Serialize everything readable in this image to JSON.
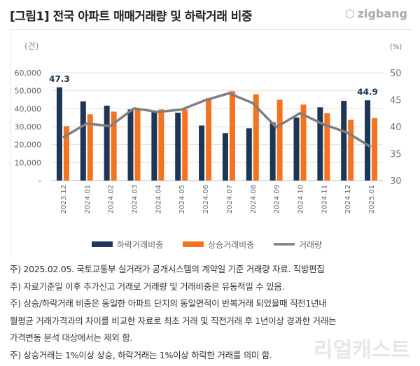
{
  "header": {
    "title": "[그림1] 전국 아파트 매매거래량 및 하락거래 비중",
    "logo": "zigbang"
  },
  "chart_data": {
    "type": "bar",
    "categories": [
      "2023.12",
      "2024.01",
      "2024.02",
      "2024.03",
      "2024.04",
      "2024.05",
      "2024.06",
      "2024.07",
      "2024.08",
      "2024.09",
      "2024.10",
      "2024.11",
      "2024.12",
      "2025.01"
    ],
    "series": [
      {
        "name": "하락거래비중",
        "axis": "right",
        "kind": "bar",
        "color": "#1f3556",
        "values": [
          47.3,
          44.7,
          43.9,
          43.2,
          42.7,
          42.6,
          40.2,
          38.8,
          39.7,
          40.8,
          41.7,
          43.6,
          44.8,
          44.9
        ]
      },
      {
        "name": "상승거래비중",
        "axis": "right",
        "kind": "bar",
        "color": "#f47321",
        "values": [
          40.1,
          42.3,
          42.8,
          43.2,
          43.2,
          43.2,
          45.3,
          46.6,
          46.0,
          45.0,
          44.1,
          42.5,
          41.3,
          41.6
        ]
      },
      {
        "name": "거래량",
        "axis": "left",
        "kind": "line",
        "color": "#7f7f7f",
        "values": [
          24000,
          31700,
          30400,
          40200,
          38200,
          39500,
          44700,
          48600,
          43200,
          29700,
          37500,
          31300,
          26700,
          18600
        ]
      }
    ],
    "left_axis": {
      "unit": "(건)",
      "range": [
        0,
        60000
      ],
      "ticks": [
        "-",
        "10,000",
        "20,000",
        "30,000",
        "40,000",
        "50,000",
        "60,000"
      ]
    },
    "right_axis": {
      "unit": "(%)",
      "range": [
        30,
        50
      ],
      "ticks": [
        "30",
        "35",
        "40",
        "45",
        "50"
      ]
    },
    "data_labels": [
      {
        "series": "하락거래비중",
        "category": "2023.12",
        "text": "47.3"
      },
      {
        "series": "하락거래비중",
        "category": "2025.01",
        "text": "44.9"
      }
    ],
    "legend_position": "bottom",
    "grid": true
  },
  "notes": [
    "주) 2025.02.05. 국토교통부 실거래가 공개시스템의 계약일 기준 거래량  자료. 직방편집",
    "주) 자료기준일 이후 추가신고 거래로 거래량 및 거래비중은 유동적일 수 있음.",
    "주) 상승/하락거래 비중은 동일한 아파트 단지의 동일면적이 반복거래 되었을때 직전1년내",
    "월평균 거래가격과의 차이를 비교한 자료로 최초 거래 및 직전거래 후 1년이상 경과한 거래는",
    "가격변동 분석 대상에서는 제외 함.",
    "주) 상승거래는 1%이상 상승, 하락거래는 1%이상 하락한 거래를 의미 함."
  ],
  "watermark": "리얼캐스트"
}
